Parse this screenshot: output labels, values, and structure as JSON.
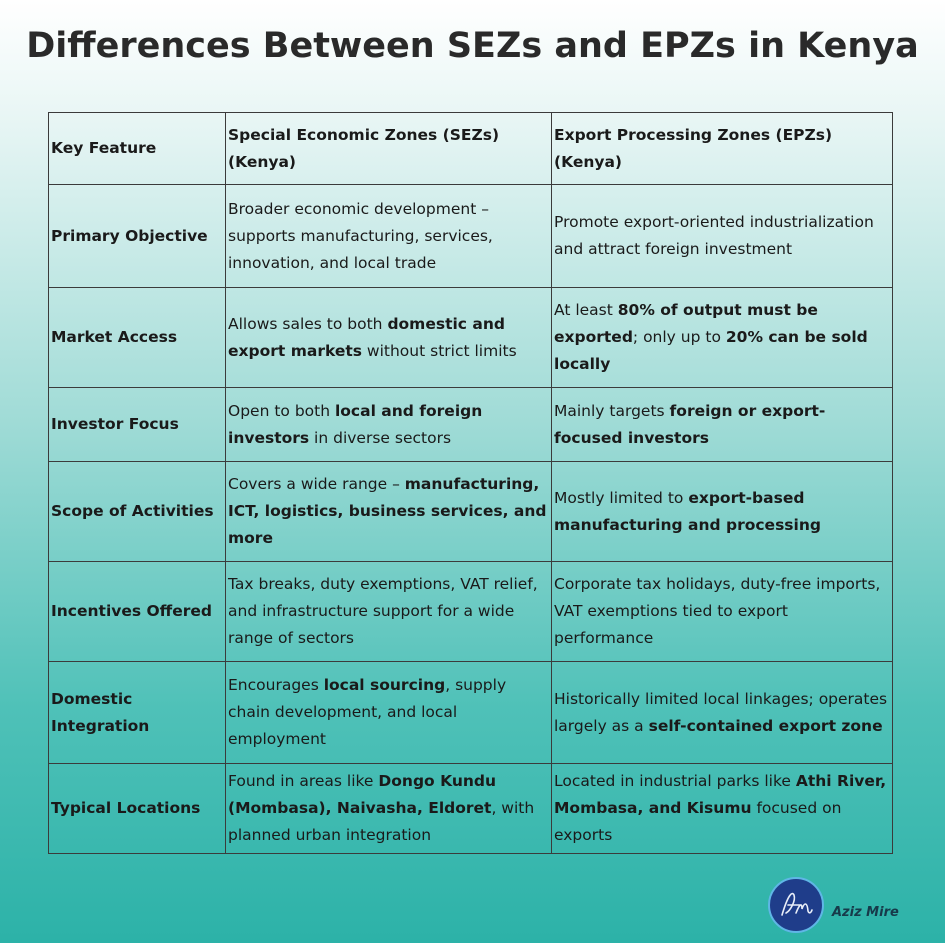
{
  "title": "Differences Between SEZs and EPZs in Kenya",
  "headers": [
    "Key Feature",
    "Special Economic Zones (SEZs) (Kenya)",
    "Export Processing Zones (EPZs) (Kenya)"
  ],
  "rows": [
    {
      "feature": "Primary Objective",
      "sez": [
        {
          "t": "Broader economic development – supports manufacturing, services, innovation, and local trade"
        }
      ],
      "epz": [
        {
          "t": "Promote export-oriented industrialization and attract foreign investment"
        }
      ]
    },
    {
      "feature": "Market Access",
      "sez": [
        {
          "t": "Allows sales to both "
        },
        {
          "t": "domestic and export markets",
          "b": true
        },
        {
          "t": " without strict limits"
        }
      ],
      "epz": [
        {
          "t": "At least "
        },
        {
          "t": "80% of output must be exported",
          "b": true
        },
        {
          "t": "; only up to "
        },
        {
          "t": "20% can be sold locally",
          "b": true
        }
      ]
    },
    {
      "feature": "Investor Focus",
      "sez": [
        {
          "t": "Open to both "
        },
        {
          "t": "local and foreign investors",
          "b": true
        },
        {
          "t": " in diverse sectors"
        }
      ],
      "epz": [
        {
          "t": "Mainly targets "
        },
        {
          "t": "foreign or export-focused investors",
          "b": true
        }
      ]
    },
    {
      "feature": "Scope of Activities",
      "sez": [
        {
          "t": "Covers a wide range – "
        },
        {
          "t": "manufacturing, ICT, logistics, business services, and more",
          "b": true
        }
      ],
      "epz": [
        {
          "t": "Mostly limited to "
        },
        {
          "t": "export-based manufacturing and processing",
          "b": true
        }
      ]
    },
    {
      "feature": "Incentives Offered",
      "sez": [
        {
          "t": "Tax breaks, duty exemptions, VAT relief, and infrastructure support for a wide range of sectors"
        }
      ],
      "epz": [
        {
          "t": "Corporate tax holidays, duty-free imports, VAT exemptions tied to export performance"
        }
      ]
    },
    {
      "feature": "Domestic Integration",
      "sez": [
        {
          "t": "Encourages "
        },
        {
          "t": "local sourcing",
          "b": true
        },
        {
          "t": ", supply chain development, and local employment"
        }
      ],
      "epz": [
        {
          "t": "Historically limited local linkages; operates largely as a "
        },
        {
          "t": "self-contained export zone",
          "b": true
        }
      ]
    },
    {
      "feature": "Typical Locations",
      "sez": [
        {
          "t": "Found in areas like "
        },
        {
          "t": "Dongo Kundu (Mombasa), Naivasha, Eldoret",
          "b": true
        },
        {
          "t": ", with planned urban integration"
        }
      ],
      "epz": [
        {
          "t": "Located in industrial parks like "
        },
        {
          "t": "Athi River, Mombasa, and Kisumu",
          "b": true
        },
        {
          "t": " focused on exports"
        }
      ]
    }
  ],
  "author": {
    "logo_text": "AM",
    "name": "Aziz Mire"
  }
}
